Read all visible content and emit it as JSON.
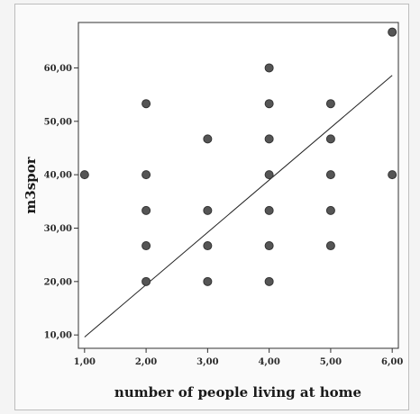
{
  "chart_data": {
    "type": "scatter",
    "title": "",
    "xlabel": "number of people living at home",
    "ylabel": "m3spor",
    "xlim": [
      0.9,
      6.1
    ],
    "ylim": [
      7.5,
      68.5
    ],
    "x_ticks": [
      1,
      2,
      3,
      4,
      5,
      6
    ],
    "x_tick_labels": [
      "1,00",
      "2,00",
      "3,00",
      "4,00",
      "5,00",
      "6,00"
    ],
    "y_ticks": [
      10,
      20,
      30,
      40,
      50,
      60
    ],
    "y_tick_labels": [
      "10,00",
      "20,00",
      "30,00",
      "40,00",
      "50,00",
      "60,00"
    ],
    "grid": false,
    "points": [
      {
        "x": 1,
        "y": 40
      },
      {
        "x": 2,
        "y": 20
      },
      {
        "x": 2,
        "y": 26.7
      },
      {
        "x": 2,
        "y": 33.3
      },
      {
        "x": 2,
        "y": 40
      },
      {
        "x": 2,
        "y": 53.3
      },
      {
        "x": 3,
        "y": 20
      },
      {
        "x": 3,
        "y": 26.7
      },
      {
        "x": 3,
        "y": 33.3
      },
      {
        "x": 3,
        "y": 46.7
      },
      {
        "x": 4,
        "y": 20
      },
      {
        "x": 4,
        "y": 26.7
      },
      {
        "x": 4,
        "y": 33.3
      },
      {
        "x": 4,
        "y": 40
      },
      {
        "x": 4,
        "y": 46.7
      },
      {
        "x": 4,
        "y": 53.3
      },
      {
        "x": 4,
        "y": 60
      },
      {
        "x": 5,
        "y": 26.7
      },
      {
        "x": 5,
        "y": 33.3
      },
      {
        "x": 5,
        "y": 40
      },
      {
        "x": 5,
        "y": 46.7
      },
      {
        "x": 5,
        "y": 53.3
      },
      {
        "x": 6,
        "y": 40
      },
      {
        "x": 6,
        "y": 66.7
      }
    ],
    "fit_line": {
      "x": [
        1,
        6
      ],
      "y": [
        9.6,
        58.6
      ]
    },
    "colors": {
      "marker": "#555555",
      "line": "#222222",
      "axis": "#333333"
    }
  }
}
